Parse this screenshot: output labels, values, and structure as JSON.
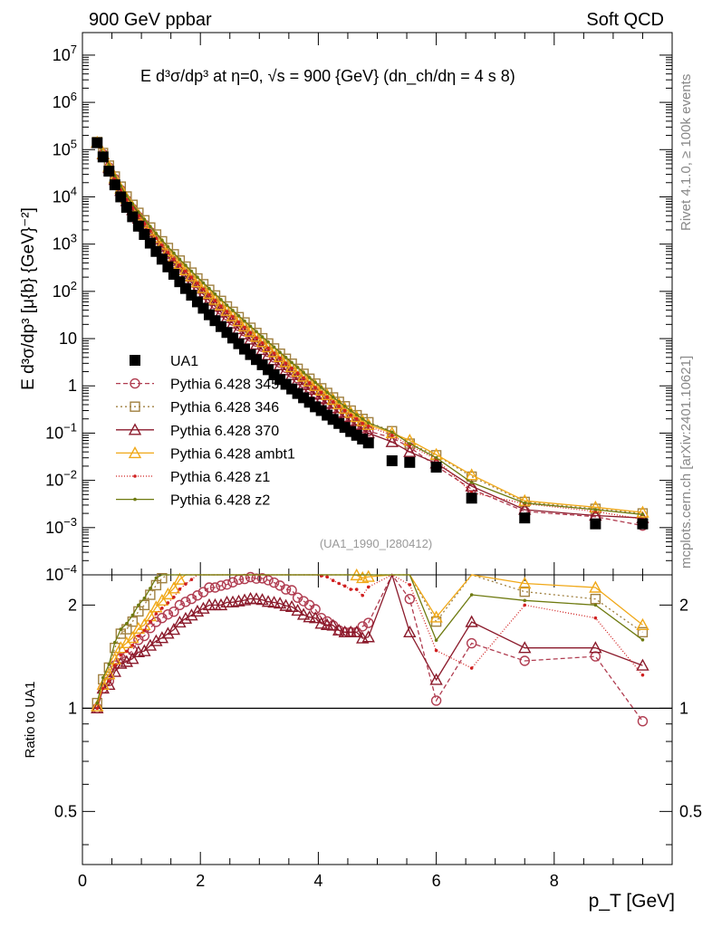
{
  "header": {
    "left": "900 GeV ppbar",
    "right": "Soft QCD",
    "right_vertical": "Rivet 4.1.0, ≥ 100k events",
    "right_vertical2": "mcplots.cern.ch [arXiv:2401.10621]"
  },
  "chart_data": [
    {
      "type": "scatter",
      "panel": "main",
      "title": "E  d³σ/dp³ at η=0, √s = 900 {GeV} (dn_ch/dη = 4 s 8)",
      "ylabel": "E d³σ/dp³ [μ{b} {GeV}⁻²]",
      "xlabel": "p_T [GeV]",
      "xlim": [
        0,
        10
      ],
      "ylim": [
        0.0001,
        30000000
      ],
      "yscale": "log",
      "watermark": "(UA1_1990_I280412)",
      "x": [
        0.25,
        0.35,
        0.45,
        0.55,
        0.65,
        0.75,
        0.85,
        0.95,
        1.05,
        1.15,
        1.25,
        1.35,
        1.45,
        1.55,
        1.65,
        1.75,
        1.85,
        1.95,
        2.05,
        2.15,
        2.25,
        2.35,
        2.45,
        2.55,
        2.65,
        2.75,
        2.85,
        2.95,
        3.05,
        3.15,
        3.25,
        3.35,
        3.45,
        3.55,
        3.65,
        3.75,
        3.85,
        3.95,
        4.05,
        4.15,
        4.25,
        4.35,
        4.45,
        4.55,
        4.65,
        4.75,
        4.85,
        5.25,
        5.55,
        6.0,
        6.6,
        7.5,
        8.7,
        9.5
      ],
      "series": [
        {
          "name": "UA1",
          "color": "#000000",
          "marker": "square",
          "values": [
            140000,
            70000,
            35000,
            18000,
            10000,
            6000,
            3800,
            2400,
            1600,
            1050,
            700,
            480,
            330,
            230,
            160,
            115,
            83,
            60,
            44,
            32,
            24,
            18,
            13.5,
            10.3,
            7.8,
            6.0,
            4.6,
            3.6,
            2.8,
            2.2,
            1.72,
            1.36,
            1.08,
            0.86,
            0.69,
            0.56,
            0.45,
            0.36,
            0.3,
            0.24,
            0.195,
            0.16,
            0.132,
            0.108,
            0.09,
            0.075,
            0.062,
            0.026,
            0.024,
            0.019,
            0.0042,
            0.0016,
            0.0012,
            0.0012
          ]
        },
        {
          "name": "Pythia 6.428 345",
          "color": "#b03c50",
          "marker": "circle",
          "dash": "5,3",
          "values": [
            140000,
            80000,
            42000,
            24000,
            14000,
            8500,
            5600,
            3800,
            2600,
            1800,
            1250,
            880,
            620,
            440,
            320,
            235,
            173,
            128,
            96,
            72,
            54,
            41,
            31,
            24,
            18.5,
            14.3,
            11.1,
            8.6,
            6.7,
            5.2,
            4.0,
            3.1,
            2.4,
            1.9,
            1.45,
            1.15,
            0.9,
            0.7,
            0.55,
            0.43,
            0.34,
            0.27,
            0.22,
            0.18,
            0.15,
            0.13,
            0.11,
            0.08,
            0.05,
            0.02,
            0.0065,
            0.0022,
            0.0017,
            0.0011
          ]
        },
        {
          "name": "Pythia 6.428 346",
          "color": "#a08040",
          "marker": "square-open",
          "dash": "2,3",
          "values": [
            145000,
            85000,
            46000,
            27000,
            16500,
            10200,
            6800,
            4600,
            3200,
            2250,
            1600,
            1150,
            830,
            610,
            450,
            335,
            250,
            188,
            142,
            108,
            82,
            63,
            48,
            37,
            28.5,
            22,
            17,
            13.2,
            10.2,
            7.9,
            6.2,
            4.8,
            3.75,
            2.95,
            2.3,
            1.8,
            1.42,
            1.12,
            0.89,
            0.71,
            0.57,
            0.46,
            0.37,
            0.3,
            0.24,
            0.2,
            0.17,
            0.11,
            0.06,
            0.034,
            0.012,
            0.0035,
            0.0025,
            0.002
          ]
        },
        {
          "name": "Pythia 6.428 370",
          "color": "#8b1a2b",
          "marker": "triangle-open",
          "values": [
            140000,
            80000,
            41000,
            23000,
            13500,
            8200,
            5300,
            3500,
            2350,
            1600,
            1100,
            770,
            545,
            390,
            285,
            210,
            155,
            115,
            86,
            64,
            48,
            36,
            27.5,
            21,
            16,
            12.4,
            9.6,
            7.5,
            5.8,
            4.5,
            3.5,
            2.75,
            2.15,
            1.7,
            1.33,
            1.05,
            0.83,
            0.66,
            0.53,
            0.42,
            0.34,
            0.27,
            0.22,
            0.18,
            0.15,
            0.12,
            0.1,
            0.065,
            0.04,
            0.023,
            0.0075,
            0.0024,
            0.0018,
            0.0016
          ]
        },
        {
          "name": "Pythia 6.428 ambt1",
          "color": "#f0a818",
          "marker": "triangle-open",
          "values": [
            142000,
            82000,
            44000,
            25000,
            15000,
            9300,
            6100,
            4100,
            2800,
            1950,
            1380,
            990,
            710,
            515,
            380,
            282,
            210,
            157,
            118,
            89,
            67,
            51,
            39,
            30,
            23.5,
            18.2,
            14.1,
            11,
            8.5,
            6.6,
            5.2,
            4.1,
            3.2,
            2.5,
            2.0,
            1.58,
            1.25,
            1.0,
            0.8,
            0.64,
            0.51,
            0.41,
            0.33,
            0.27,
            0.22,
            0.18,
            0.15,
            0.1,
            0.07,
            0.035,
            0.013,
            0.0037,
            0.0027,
            0.0021
          ]
        },
        {
          "name": "Pythia 6.428 z1",
          "color": "#d02020",
          "marker": "dot",
          "dash": "1,2",
          "values": [
            140000,
            80000,
            42000,
            24000,
            14300,
            8800,
            5800,
            3900,
            2700,
            1880,
            1320,
            940,
            670,
            485,
            356,
            265,
            197,
            148,
            111,
            84,
            64,
            49,
            37.5,
            29,
            22.3,
            17.3,
            13.4,
            10.4,
            8.1,
            6.3,
            4.9,
            3.85,
            3.0,
            2.36,
            1.86,
            1.47,
            1.16,
            0.92,
            0.73,
            0.58,
            0.46,
            0.37,
            0.3,
            0.24,
            0.2,
            0.16,
            0.14,
            0.09,
            0.055,
            0.028,
            0.0055,
            0.0032,
            0.0022,
            0.0015
          ]
        },
        {
          "name": "Pythia 6.428 z2",
          "color": "#6e7a10",
          "marker": "dot",
          "values": [
            145000,
            86000,
            47000,
            28000,
            17000,
            10600,
            7100,
            4800,
            3350,
            2350,
            1680,
            1210,
            880,
            645,
            477,
            356,
            266,
            200,
            151,
            115,
            88,
            67,
            51,
            39.5,
            30.5,
            23.5,
            18.2,
            14.1,
            10.9,
            8.5,
            6.6,
            5.1,
            4.0,
            3.1,
            2.45,
            1.92,
            1.5,
            1.18,
            0.93,
            0.73,
            0.58,
            0.46,
            0.37,
            0.3,
            0.245,
            0.2,
            0.165,
            0.105,
            0.06,
            0.03,
            0.009,
            0.0033,
            0.0024,
            0.0019
          ]
        }
      ]
    },
    {
      "type": "scatter",
      "panel": "ratio",
      "ylabel": "Ratio to UA1",
      "yscale": "log",
      "ylim": [
        0.35,
        2.45
      ],
      "yticks": [
        {
          "v": 0.5,
          "label": "0.5"
        },
        {
          "v": 1,
          "label": "1"
        },
        {
          "v": 2,
          "label": "2"
        }
      ],
      "xticks": [
        {
          "v": 0,
          "label": "0"
        },
        {
          "v": 2,
          "label": "2"
        },
        {
          "v": 4,
          "label": "4"
        },
        {
          "v": 6,
          "label": "6"
        },
        {
          "v": 8,
          "label": "8"
        }
      ],
      "reference": 1
    }
  ]
}
